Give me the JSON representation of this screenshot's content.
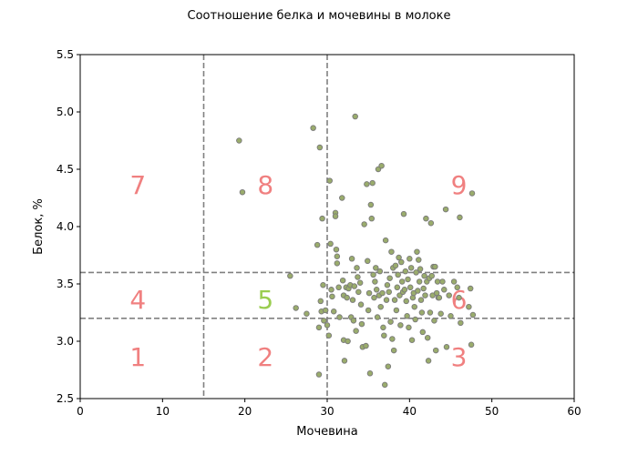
{
  "chart_data": {
    "type": "scatter",
    "title": "Соотношение белка и мочевины в молоке",
    "xlabel": "Мочевина",
    "ylabel": "Белок, %",
    "xlim": [
      0,
      60
    ],
    "ylim": [
      2.5,
      5.5
    ],
    "xticks": [
      "0",
      "10",
      "20",
      "30",
      "40",
      "50",
      "60"
    ],
    "yticks": [
      "2.5",
      "3.0",
      "3.5",
      "4.0",
      "4.5",
      "5.0",
      "5.5"
    ],
    "grid": false,
    "marker_color": "#9aac6c",
    "marker_edge_color": "#7a7a7a",
    "reference_lines": {
      "vertical": [
        15,
        30
      ],
      "horizontal": [
        3.2,
        3.6
      ],
      "color": "#808080",
      "style": "dashed"
    },
    "zone_labels": [
      {
        "text": "1",
        "x": 7,
        "y": 2.85,
        "color": "#f08080"
      },
      {
        "text": "2",
        "x": 22.5,
        "y": 2.85,
        "color": "#f08080"
      },
      {
        "text": "3",
        "x": 46,
        "y": 2.85,
        "color": "#f08080"
      },
      {
        "text": "4",
        "x": 7,
        "y": 3.35,
        "color": "#f08080"
      },
      {
        "text": "5",
        "x": 22.5,
        "y": 3.35,
        "color": "#9acd50"
      },
      {
        "text": "6",
        "x": 46,
        "y": 3.35,
        "color": "#f08080"
      },
      {
        "text": "7",
        "x": 7,
        "y": 4.35,
        "color": "#f08080"
      },
      {
        "text": "8",
        "x": 22.5,
        "y": 4.35,
        "color": "#f08080"
      },
      {
        "text": "9",
        "x": 46,
        "y": 4.35,
        "color": "#f08080"
      }
    ],
    "points": [
      [
        19.3,
        4.75
      ],
      [
        19.7,
        4.3
      ],
      [
        25.5,
        3.57
      ],
      [
        26.2,
        3.29
      ],
      [
        27.5,
        3.24
      ],
      [
        28.3,
        4.86
      ],
      [
        28.8,
        3.84
      ],
      [
        29.0,
        3.12
      ],
      [
        29.0,
        2.71
      ],
      [
        29.1,
        4.69
      ],
      [
        29.2,
        3.35
      ],
      [
        29.3,
        3.26
      ],
      [
        29.4,
        4.07
      ],
      [
        29.5,
        3.49
      ],
      [
        29.6,
        3.18
      ],
      [
        29.8,
        3.27
      ],
      [
        30.0,
        3.14
      ],
      [
        30.2,
        3.05
      ],
      [
        30.3,
        4.4
      ],
      [
        30.4,
        3.85
      ],
      [
        30.5,
        3.45
      ],
      [
        30.6,
        3.39
      ],
      [
        30.8,
        3.26
      ],
      [
        31.0,
        4.12
      ],
      [
        31.0,
        4.09
      ],
      [
        31.1,
        3.8
      ],
      [
        31.2,
        3.74
      ],
      [
        31.2,
        3.68
      ],
      [
        31.4,
        3.47
      ],
      [
        31.5,
        3.21
      ],
      [
        31.8,
        4.25
      ],
      [
        31.9,
        3.53
      ],
      [
        32.0,
        3.4
      ],
      [
        32.0,
        3.01
      ],
      [
        32.1,
        2.83
      ],
      [
        32.3,
        3.47
      ],
      [
        32.4,
        3.38
      ],
      [
        32.5,
        3.0
      ],
      [
        32.6,
        3.46
      ],
      [
        32.8,
        3.49
      ],
      [
        32.9,
        3.21
      ],
      [
        33.0,
        3.72
      ],
      [
        33.1,
        3.36
      ],
      [
        33.2,
        3.18
      ],
      [
        33.3,
        3.48
      ],
      [
        33.4,
        4.96
      ],
      [
        33.5,
        3.09
      ],
      [
        33.6,
        3.64
      ],
      [
        33.7,
        3.56
      ],
      [
        33.8,
        3.43
      ],
      [
        34.0,
        3.51
      ],
      [
        34.1,
        3.32
      ],
      [
        34.2,
        3.15
      ],
      [
        34.3,
        2.95
      ],
      [
        34.5,
        4.02
      ],
      [
        34.7,
        2.96
      ],
      [
        34.8,
        4.37
      ],
      [
        34.9,
        3.7
      ],
      [
        35.0,
        3.27
      ],
      [
        35.1,
        3.42
      ],
      [
        35.2,
        2.72
      ],
      [
        35.3,
        4.19
      ],
      [
        35.4,
        4.07
      ],
      [
        35.5,
        4.38
      ],
      [
        35.6,
        3.58
      ],
      [
        35.7,
        3.38
      ],
      [
        35.8,
        3.52
      ],
      [
        35.9,
        3.64
      ],
      [
        36.0,
        3.45
      ],
      [
        36.1,
        3.21
      ],
      [
        36.2,
        4.5
      ],
      [
        36.3,
        3.4
      ],
      [
        36.4,
        3.61
      ],
      [
        36.5,
        3.3
      ],
      [
        36.6,
        4.53
      ],
      [
        36.7,
        3.42
      ],
      [
        36.8,
        3.12
      ],
      [
        36.9,
        3.05
      ],
      [
        37.0,
        2.62
      ],
      [
        37.1,
        3.88
      ],
      [
        37.2,
        3.36
      ],
      [
        37.3,
        3.49
      ],
      [
        37.4,
        2.78
      ],
      [
        37.5,
        3.43
      ],
      [
        37.6,
        3.55
      ],
      [
        37.7,
        3.17
      ],
      [
        37.8,
        3.78
      ],
      [
        37.9,
        3.02
      ],
      [
        38.0,
        3.64
      ],
      [
        38.1,
        2.92
      ],
      [
        38.2,
        3.36
      ],
      [
        38.3,
        3.66
      ],
      [
        38.4,
        3.27
      ],
      [
        38.5,
        3.47
      ],
      [
        38.6,
        3.58
      ],
      [
        38.7,
        3.73
      ],
      [
        38.8,
        3.4
      ],
      [
        38.9,
        3.14
      ],
      [
        39.0,
        3.69
      ],
      [
        39.1,
        3.52
      ],
      [
        39.2,
        3.43
      ],
      [
        39.3,
        4.11
      ],
      [
        39.4,
        3.45
      ],
      [
        39.5,
        3.61
      ],
      [
        39.6,
        3.35
      ],
      [
        39.7,
        3.22
      ],
      [
        39.8,
        3.54
      ],
      [
        39.9,
        3.12
      ],
      [
        40.0,
        3.72
      ],
      [
        40.1,
        3.47
      ],
      [
        40.2,
        3.64
      ],
      [
        40.3,
        3.01
      ],
      [
        40.4,
        3.38
      ],
      [
        40.5,
        3.42
      ],
      [
        40.6,
        3.3
      ],
      [
        40.7,
        3.19
      ],
      [
        40.8,
        3.6
      ],
      [
        40.9,
        3.78
      ],
      [
        41.0,
        3.44
      ],
      [
        41.1,
        3.71
      ],
      [
        41.2,
        3.52
      ],
      [
        41.3,
        3.63
      ],
      [
        41.4,
        3.36
      ],
      [
        41.5,
        3.25
      ],
      [
        41.6,
        3.08
      ],
      [
        41.7,
        3.46
      ],
      [
        41.8,
        3.57
      ],
      [
        41.9,
        3.4
      ],
      [
        42.0,
        4.07
      ],
      [
        42.1,
        3.52
      ],
      [
        42.2,
        3.03
      ],
      [
        42.3,
        2.83
      ],
      [
        42.4,
        3.55
      ],
      [
        42.5,
        3.25
      ],
      [
        42.6,
        4.03
      ],
      [
        42.7,
        3.57
      ],
      [
        42.8,
        3.4
      ],
      [
        42.9,
        3.65
      ],
      [
        43.0,
        3.18
      ],
      [
        43.1,
        3.65
      ],
      [
        43.2,
        2.92
      ],
      [
        43.3,
        3.42
      ],
      [
        43.4,
        3.52
      ],
      [
        43.5,
        3.38
      ],
      [
        43.6,
        3.38
      ],
      [
        43.8,
        3.24
      ],
      [
        44.0,
        3.52
      ],
      [
        44.2,
        3.45
      ],
      [
        44.4,
        4.15
      ],
      [
        44.5,
        2.95
      ],
      [
        44.8,
        3.4
      ],
      [
        45.0,
        3.22
      ],
      [
        45.4,
        3.52
      ],
      [
        45.8,
        3.47
      ],
      [
        46.0,
        3.38
      ],
      [
        46.1,
        4.08
      ],
      [
        46.2,
        3.16
      ],
      [
        47.2,
        3.3
      ],
      [
        47.4,
        3.46
      ],
      [
        47.5,
        2.97
      ],
      [
        47.6,
        4.29
      ],
      [
        47.7,
        3.23
      ]
    ]
  }
}
